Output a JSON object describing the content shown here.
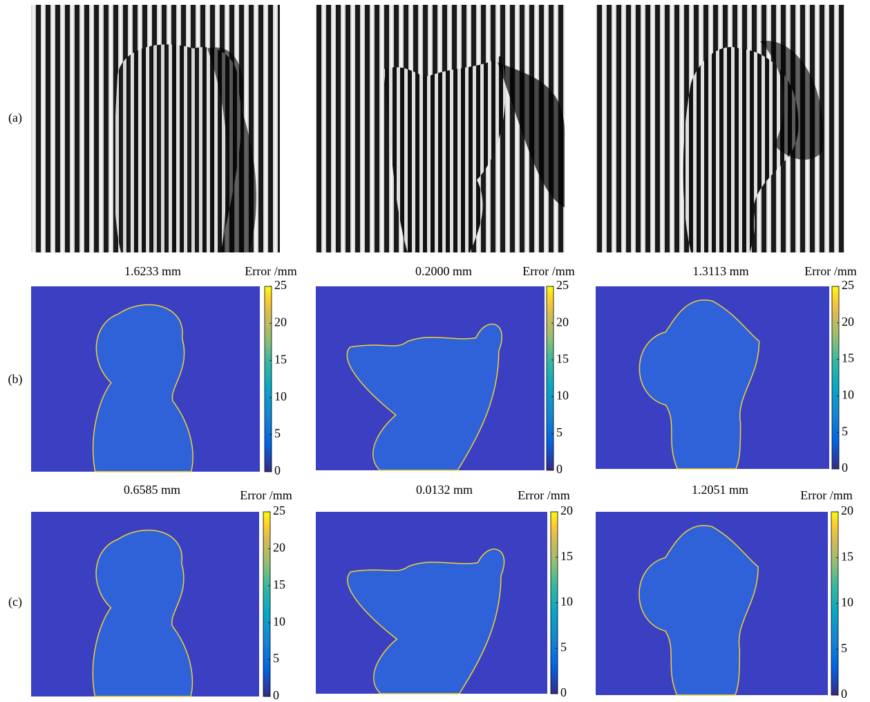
{
  "rows": [
    {
      "label": "(a)"
    },
    {
      "label": "(b)",
      "panels": [
        {
          "title": "1.6233 mm",
          "colorbar_label": "Error /mm",
          "clim": [
            0,
            25
          ],
          "colorbar_ticks": [
            0,
            5,
            10,
            15,
            20,
            25
          ]
        },
        {
          "title": "0.2000 mm",
          "colorbar_label": "Error /mm",
          "clim": [
            0,
            25
          ],
          "colorbar_ticks": [
            0,
            5,
            10,
            15,
            20,
            25
          ]
        },
        {
          "title": "1.3113 mm",
          "colorbar_label": "Error /mm",
          "clim": [
            0,
            25
          ],
          "colorbar_ticks": [
            0,
            5,
            10,
            15,
            20,
            25
          ]
        }
      ]
    },
    {
      "label": "(c)",
      "panels": [
        {
          "title": "0.6585 mm",
          "colorbar_label": "Error /mm",
          "clim": [
            0,
            25
          ],
          "colorbar_ticks": [
            0,
            5,
            10,
            15,
            20,
            25
          ]
        },
        {
          "title": "0.0132 mm",
          "colorbar_label": "Error /mm",
          "clim": [
            0,
            20
          ],
          "colorbar_ticks": [
            0,
            5,
            10,
            15,
            20
          ]
        },
        {
          "title": "1.2051 mm",
          "colorbar_label": "Error /mm",
          "clim": [
            0,
            20
          ],
          "colorbar_ticks": [
            0,
            5,
            10,
            15,
            20
          ]
        }
      ]
    }
  ]
}
